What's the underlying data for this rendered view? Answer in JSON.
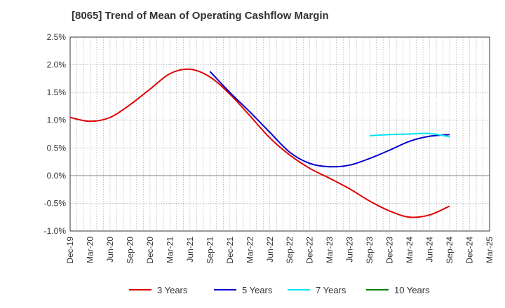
{
  "chart_data": {
    "type": "line",
    "title": "[8065]  Trend of Mean of Operating Cashflow Margin",
    "xlabel": "",
    "ylabel": "",
    "ylim": [
      -1.0,
      2.5
    ],
    "yticks": [
      "2.5%",
      "2.0%",
      "1.5%",
      "1.0%",
      "0.5%",
      "0.0%",
      "-0.5%",
      "-1.0%"
    ],
    "ytick_values": [
      2.5,
      2.0,
      1.5,
      1.0,
      0.5,
      0.0,
      -0.5,
      -1.0
    ],
    "categories": [
      "Dec-19",
      "Mar-20",
      "Jun-20",
      "Sep-20",
      "Dec-20",
      "Mar-21",
      "Jun-21",
      "Sep-21",
      "Dec-21",
      "Mar-22",
      "Jun-22",
      "Sep-22",
      "Dec-22",
      "Mar-23",
      "Jun-23",
      "Sep-23",
      "Dec-23",
      "Mar-24",
      "Jun-24",
      "Sep-24",
      "Dec-24",
      "Mar-25"
    ],
    "grid": true,
    "legend_position": "bottom",
    "series": [
      {
        "name": "3 Years",
        "color": "#e00000",
        "values": [
          1.05,
          0.98,
          1.05,
          1.28,
          1.56,
          1.84,
          1.92,
          1.78,
          1.47,
          1.08,
          0.68,
          0.37,
          0.13,
          -0.05,
          -0.24,
          -0.46,
          -0.64,
          -0.75,
          -0.71,
          -0.55,
          null,
          null
        ]
      },
      {
        "name": "5 Years",
        "color": "#0000cc",
        "values": [
          null,
          null,
          null,
          null,
          null,
          null,
          null,
          1.88,
          1.5,
          1.15,
          0.78,
          0.42,
          0.22,
          0.16,
          0.19,
          0.31,
          0.46,
          0.62,
          0.71,
          0.74,
          null,
          null
        ]
      },
      {
        "name": "7 Years",
        "color": "#00e5ee",
        "values": [
          null,
          null,
          null,
          null,
          null,
          null,
          null,
          null,
          null,
          null,
          null,
          null,
          null,
          null,
          null,
          0.72,
          0.74,
          0.75,
          0.76,
          0.7,
          null,
          null
        ]
      },
      {
        "name": "10 Years",
        "color": "#008000",
        "values": [
          null,
          null,
          null,
          null,
          null,
          null,
          null,
          null,
          null,
          null,
          null,
          null,
          null,
          null,
          null,
          null,
          null,
          null,
          null,
          null,
          null,
          null
        ]
      }
    ]
  }
}
